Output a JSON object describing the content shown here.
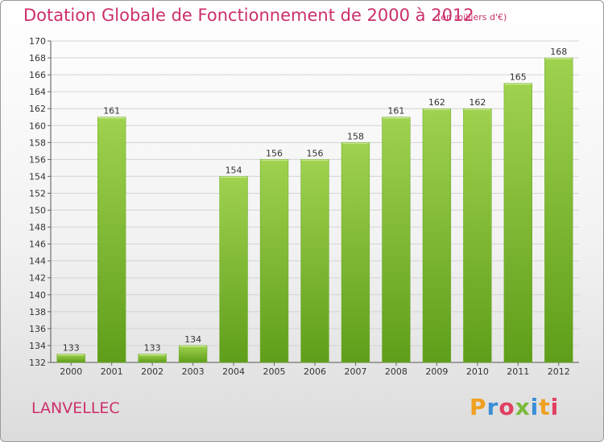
{
  "title": "Dotation Globale de Fonctionnement de 2000 à 2012",
  "subtitle": "(en milliers d'€)",
  "commune": "LANVELLEC",
  "logo": {
    "letters": [
      "P",
      "r",
      "o",
      "x",
      "i",
      "t",
      "i"
    ],
    "colors": [
      "#f0a020",
      "#3a8fd6",
      "#e04060",
      "#7ab93a",
      "#3a8fd6",
      "#f0a020",
      "#e04060"
    ]
  },
  "colors": {
    "title": "#cc2f6c",
    "bar_light": "#9fd24e",
    "bar_dark": "#5f9e1a"
  },
  "chart_data": {
    "type": "bar",
    "title": "Dotation Globale de Fonctionnement de 2000 à 2012",
    "subtitle": "(en milliers d'€)",
    "categories": [
      "2000",
      "2001",
      "2002",
      "2003",
      "2004",
      "2005",
      "2006",
      "2007",
      "2008",
      "2009",
      "2010",
      "2011",
      "2012"
    ],
    "values": [
      133,
      161,
      133,
      134,
      154,
      156,
      156,
      158,
      161,
      162,
      162,
      165,
      168
    ],
    "ylim": [
      132,
      170
    ],
    "yticks": [
      132,
      134,
      136,
      138,
      140,
      142,
      144,
      146,
      148,
      150,
      152,
      154,
      156,
      158,
      160,
      162,
      164,
      166,
      168,
      170
    ],
    "grid": true,
    "legend": "none"
  }
}
